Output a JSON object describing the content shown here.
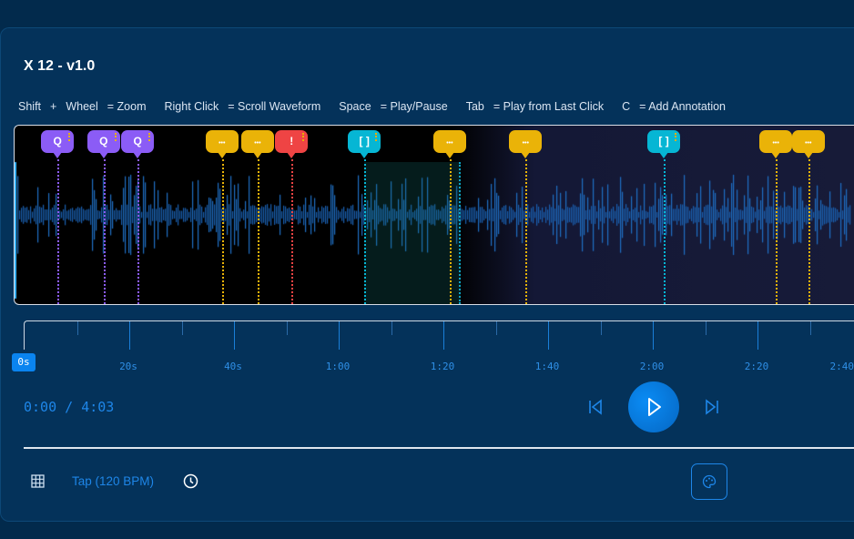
{
  "app": {
    "title": "X 12 - v1.0"
  },
  "shortcuts": [
    {
      "key": "Shift",
      "plus": "+",
      "key2": "Wheel",
      "action": "= Zoom"
    },
    {
      "key": "Right Click",
      "action": "= Scroll Waveform"
    },
    {
      "key": "Space",
      "action": "= Play/Pause"
    },
    {
      "key": "Tab",
      "action": "= Play from Last Click"
    },
    {
      "key": "C",
      "action": "= Add Annotation"
    }
  ],
  "colors": {
    "purple": "#8b5cf6",
    "yellow": "#eab308",
    "red": "#ef4444",
    "cyan": "#06b6d4",
    "accent": "#1e86e8"
  },
  "annotations": [
    {
      "time": 6.3,
      "type": "purple",
      "glyph": "Q"
    },
    {
      "time": 15.1,
      "type": "purple",
      "glyph": "Q"
    },
    {
      "time": 21.6,
      "type": "purple",
      "glyph": "Q"
    },
    {
      "time": 37.7,
      "type": "yellow",
      "glyph": "•••"
    },
    {
      "time": 44.5,
      "type": "yellow",
      "glyph": "•••"
    },
    {
      "time": 51.0,
      "type": "red",
      "glyph": "!"
    },
    {
      "time": 64.9,
      "type": "cyan",
      "glyph": "[ ]"
    },
    {
      "time": 81.2,
      "type": "yellow",
      "glyph": "•••"
    },
    {
      "time": 95.7,
      "type": "yellow",
      "glyph": "•••"
    },
    {
      "time": 122.1,
      "type": "cyan",
      "glyph": "[ ]"
    },
    {
      "time": 143.5,
      "type": "yellow",
      "glyph": "•••"
    },
    {
      "time": 149.7,
      "type": "yellow",
      "glyph": "•••"
    }
  ],
  "selection": {
    "start": 64.9,
    "end": 83.3
  },
  "timeline": {
    "start_label": "0s",
    "labels": [
      {
        "t": 20,
        "label": "20s"
      },
      {
        "t": 40,
        "label": "40s"
      },
      {
        "t": 60,
        "label": "1:00"
      },
      {
        "t": 80,
        "label": "1:20"
      },
      {
        "t": 100,
        "label": "1:40"
      },
      {
        "t": 120,
        "label": "2:00"
      },
      {
        "t": 140,
        "label": "2:20"
      },
      {
        "t": 160,
        "label": "2:40"
      }
    ]
  },
  "player": {
    "time_display": "0:00 / 4:03",
    "current": "0:00",
    "duration": "4:03"
  },
  "footer": {
    "tap_label": "Tap (120 BPM)"
  }
}
